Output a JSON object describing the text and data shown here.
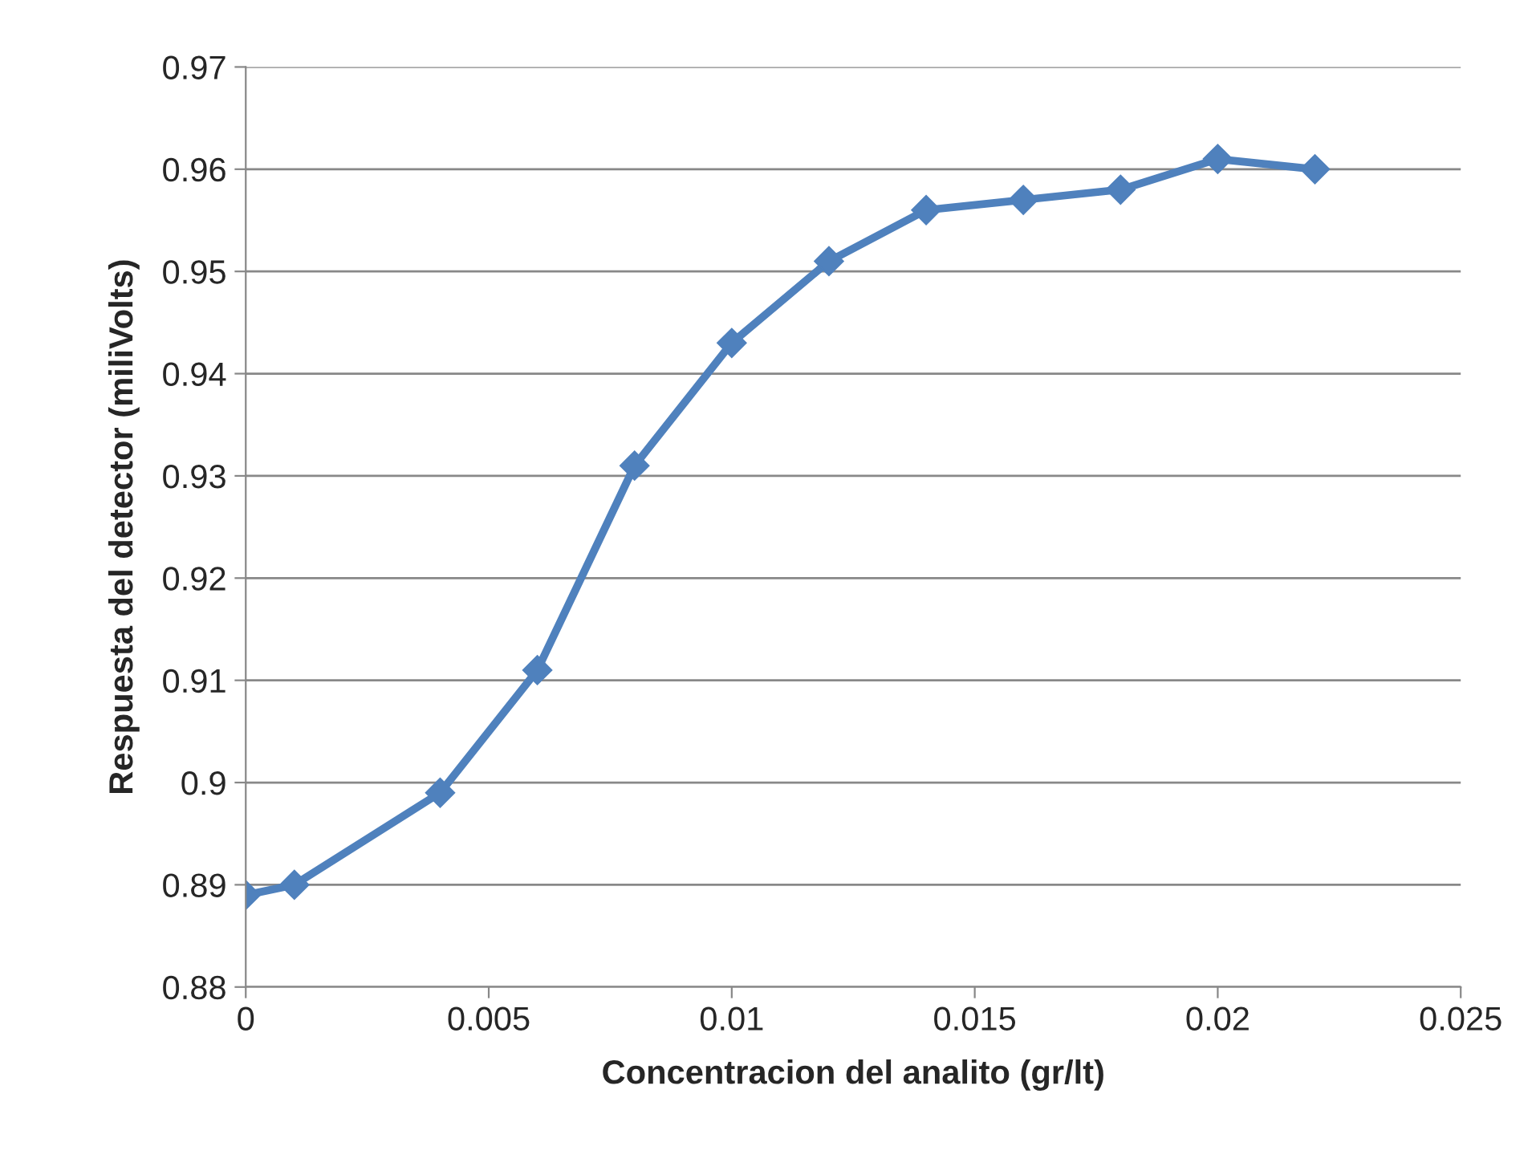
{
  "chart_data": {
    "type": "line",
    "xlabel": "Concentracion del analito (gr/lt)",
    "ylabel": "Respuesta del detector (miliVolts)",
    "x": [
      0,
      0.001,
      0.004,
      0.006,
      0.008,
      0.01,
      0.012,
      0.014,
      0.016,
      0.018,
      0.02,
      0.022
    ],
    "series": [
      {
        "color": "#4f81bd",
        "values": [
          0.889,
          0.89,
          0.899,
          0.911,
          0.931,
          0.943,
          0.951,
          0.956,
          0.957,
          0.958,
          0.961,
          0.96
        ]
      }
    ],
    "xlim": [
      0,
      0.025
    ],
    "xticks": [
      0,
      0.005,
      0.01,
      0.015,
      0.02,
      0.025
    ],
    "ylim": [
      0.88,
      0.97
    ],
    "yticks": [
      0.88,
      0.89,
      0.9,
      0.91,
      0.92,
      0.93,
      0.94,
      0.95,
      0.96,
      0.97
    ],
    "grid": "y",
    "marker": "diamond",
    "line_style": "solid"
  }
}
